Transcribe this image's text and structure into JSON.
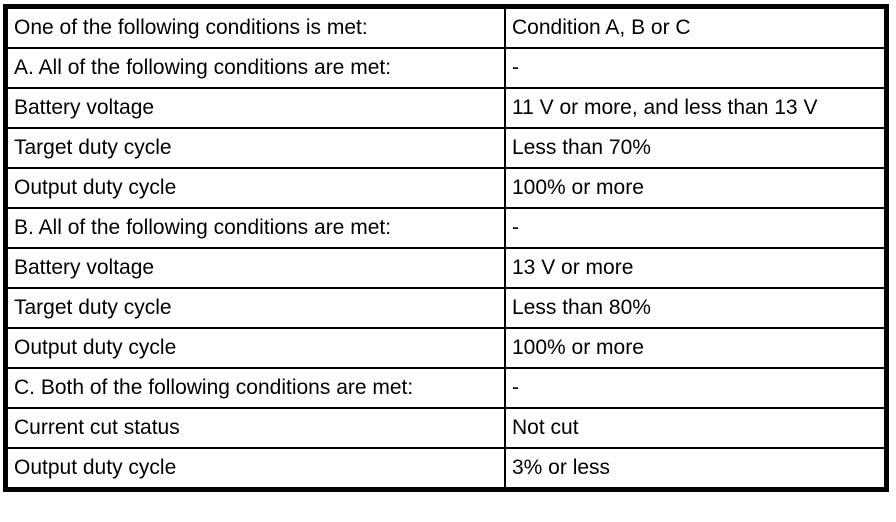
{
  "table": {
    "name": "condition-table",
    "columns": [
      "condition",
      "value"
    ],
    "rows": [
      {
        "label": "One of the following conditions is met:",
        "value": "Condition A, B or C"
      },
      {
        "label": "A. All of the following conditions are met:",
        "value": "-"
      },
      {
        "label": "Battery voltage",
        "value": "11 V or more, and less than 13 V"
      },
      {
        "label": "Target duty cycle",
        "value": "Less than 70%"
      },
      {
        "label": "Output duty cycle",
        "value": "100% or more"
      },
      {
        "label": "B. All of the following conditions are met:",
        "value": "-"
      },
      {
        "label": "Battery voltage",
        "value": "13 V or more"
      },
      {
        "label": "Target duty cycle",
        "value": "Less than 80%"
      },
      {
        "label": "Output duty cycle",
        "value": "100% or more"
      },
      {
        "label": "C. Both of the following conditions are met:",
        "value": "-"
      },
      {
        "label": "Current cut status",
        "value": "Not cut"
      },
      {
        "label": "Output duty cycle",
        "value": "3% or less"
      }
    ],
    "colors": {
      "border": "#000000",
      "background": "#ffffff",
      "text": "#000000"
    }
  }
}
